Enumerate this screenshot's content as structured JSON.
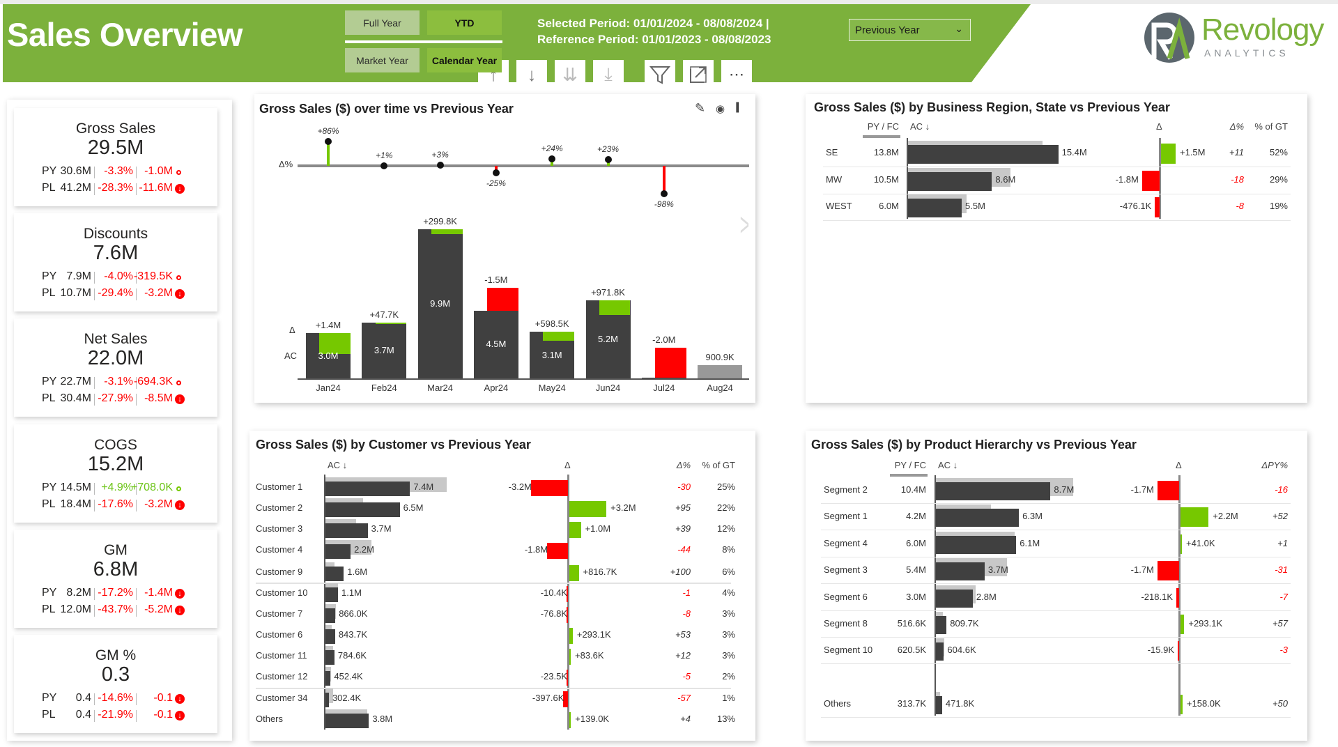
{
  "header": {
    "title": "Sales Overview",
    "period_buttons": [
      {
        "label": "Full Year",
        "selected": false
      },
      {
        "label": "YTD",
        "selected": true
      }
    ],
    "year_buttons": [
      {
        "label": "Market Year",
        "selected": false
      },
      {
        "label": "Calendar Year",
        "selected": true
      }
    ],
    "selected_period": "Selected Period: 01/01/2024 - 08/08/2024 |",
    "reference_period": "Reference Period: 01/01/2023 - 08/08/2023",
    "comparison_dropdown": {
      "value": "Previous Year"
    },
    "logo": {
      "name": "Revology",
      "tagline": "ANALYTICS"
    }
  },
  "toolbar": [
    "drill-up-icon",
    "drill-down-icon",
    "expand-all-down-icon",
    "expand-next-level-icon",
    "filter-icon",
    "focus-mode-icon",
    "more-options-icon"
  ],
  "colors": {
    "brand_green": "#7cb13c",
    "positive": "#76c800",
    "negative": "#ff0000",
    "actual": "#404040",
    "previous": "#c8c8c8"
  },
  "kpis": [
    {
      "title": "Gross Sales",
      "value": "29.5M",
      "rows": [
        {
          "label": "PY",
          "value": "30.6M",
          "pct": "-3.3%",
          "delta": "-1.0M",
          "trend": "neg",
          "icon": "dot"
        },
        {
          "label": "PL",
          "value": "41.2M",
          "pct": "-28.3%",
          "delta": "-11.6M",
          "trend": "neg",
          "icon": "arrow-down-circle"
        }
      ]
    },
    {
      "title": "Discounts",
      "value": "7.6M",
      "rows": [
        {
          "label": "PY",
          "value": "7.9M",
          "pct": "-4.0%",
          "delta": "-319.5K",
          "trend": "neg",
          "icon": "dot"
        },
        {
          "label": "PL",
          "value": "10.7M",
          "pct": "-29.4%",
          "delta": "-3.2M",
          "trend": "neg",
          "icon": "arrow-down-circle"
        }
      ]
    },
    {
      "title": "Net Sales",
      "value": "22.0M",
      "rows": [
        {
          "label": "PY",
          "value": "22.7M",
          "pct": "-3.1%",
          "delta": "-694.3K",
          "trend": "neg",
          "icon": "dot"
        },
        {
          "label": "PL",
          "value": "30.4M",
          "pct": "-27.9%",
          "delta": "-8.5M",
          "trend": "neg",
          "icon": "arrow-down-circle"
        }
      ]
    },
    {
      "title": "COGS",
      "value": "15.2M",
      "rows": [
        {
          "label": "PY",
          "value": "14.5M",
          "pct": "+4.9%",
          "delta": "+708.0K",
          "trend": "pos",
          "icon": "dot"
        },
        {
          "label": "PL",
          "value": "18.4M",
          "pct": "-17.6%",
          "delta": "-3.2M",
          "trend": "neg",
          "icon": "arrow-down-circle"
        }
      ]
    },
    {
      "title": "GM",
      "value": "6.8M",
      "rows": [
        {
          "label": "PY",
          "value": "8.2M",
          "pct": "-17.2%",
          "delta": "-1.4M",
          "trend": "neg",
          "icon": "arrow-down-circle"
        },
        {
          "label": "PL",
          "value": "12.0M",
          "pct": "-43.7%",
          "delta": "-5.2M",
          "trend": "neg",
          "icon": "arrow-down-circle"
        }
      ]
    },
    {
      "title": "GM %",
      "value": "0.3",
      "rows": [
        {
          "label": "PY",
          "value": "0.4",
          "pct": "-14.6%",
          "delta": "-0.1",
          "trend": "neg",
          "icon": "arrow-down-circle"
        },
        {
          "label": "PL",
          "value": "0.4",
          "pct": "-21.9%",
          "delta": "-0.1",
          "trend": "neg",
          "icon": "arrow-down-circle"
        }
      ]
    }
  ],
  "chart_data": [
    {
      "type": "bar",
      "title": "Gross Sales ($) over time vs Previous Year",
      "row_labels": {
        "delta_pct": "Δ%",
        "delta": "Δ",
        "actual": "AC"
      },
      "categories": [
        "Jan24",
        "Feb24",
        "Mar24",
        "Apr24",
        "May24",
        "Jun24",
        "Jul24",
        "Aug24"
      ],
      "ac": [
        3.0,
        3.7,
        9.9,
        4.5,
        3.1,
        5.2,
        0.04,
        0.9009
      ],
      "ac_labels": [
        "3.0M",
        "3.7M",
        "9.9M",
        "4.5M",
        "3.1M",
        "5.2M",
        "",
        "900.9K"
      ],
      "delta": [
        1.4,
        0.0477,
        0.2998,
        -1.5,
        0.5985,
        0.9718,
        -2.0,
        null
      ],
      "delta_labels": [
        "+1.4M",
        "+47.7K",
        "+299.8K",
        "-1.5M",
        "+598.5K",
        "+971.8K",
        "-2.0M",
        ""
      ],
      "delta_pct": [
        86,
        1,
        3,
        -25,
        24,
        23,
        -98,
        null
      ],
      "delta_pct_labels": [
        "+86%",
        "+1%",
        "+3%",
        "-25%",
        "+24%",
        "+23%",
        "-98%",
        ""
      ],
      "unit": "M"
    },
    {
      "type": "table",
      "title": "Gross Sales ($) by Business Region, State vs Previous Year",
      "columns": {
        "py": "PY / FC",
        "ac": "AC ↓",
        "delta": "Δ",
        "delta_pct": "Δ%",
        "pct_gt": "% of GT"
      },
      "rows": [
        {
          "label": "SE",
          "py": "13.8M",
          "ac": "15.4M",
          "delta": "+1.5M",
          "delta_pct": "+11",
          "pct_gt": "52%"
        },
        {
          "label": "MW",
          "py": "10.5M",
          "ac": "8.6M",
          "delta": "-1.8M",
          "delta_pct": "-18",
          "pct_gt": "29%"
        },
        {
          "label": "WEST",
          "py": "6.0M",
          "ac": "5.5M",
          "delta": "-476.1K",
          "delta_pct": "-8",
          "pct_gt": "19%"
        }
      ]
    },
    {
      "type": "table",
      "title": "Gross Sales ($) by Customer vs Previous Year",
      "columns": {
        "ac": "AC ↓",
        "delta": "Δ",
        "delta_pct": "Δ%",
        "pct_gt": "% of GT"
      },
      "rows": [
        {
          "label": "Customer 1",
          "ac": "7.4M",
          "delta": "-3.2M",
          "delta_pct": "-30",
          "pct_gt": "25%"
        },
        {
          "label": "Customer 2",
          "ac": "6.5M",
          "delta": "+3.2M",
          "delta_pct": "+95",
          "pct_gt": "22%"
        },
        {
          "label": "Customer 3",
          "ac": "3.7M",
          "delta": "+1.0M",
          "delta_pct": "+39",
          "pct_gt": "12%"
        },
        {
          "label": "Customer 4",
          "ac": "2.2M",
          "delta": "-1.8M",
          "delta_pct": "-44",
          "pct_gt": "8%"
        },
        {
          "label": "Customer 9",
          "ac": "1.6M",
          "delta": "+816.7K",
          "delta_pct": "+100",
          "pct_gt": "6%"
        },
        {
          "label": "Customer 10",
          "ac": "1.1M",
          "delta": "-10.4K",
          "delta_pct": "-1",
          "pct_gt": "4%"
        },
        {
          "label": "Customer 7",
          "ac": "866.0K",
          "delta": "-76.8K",
          "delta_pct": "-8",
          "pct_gt": "3%"
        },
        {
          "label": "Customer 6",
          "ac": "843.7K",
          "delta": "+293.1K",
          "delta_pct": "+53",
          "pct_gt": "3%"
        },
        {
          "label": "Customer 11",
          "ac": "784.6K",
          "delta": "+83.6K",
          "delta_pct": "+12",
          "pct_gt": "3%"
        },
        {
          "label": "Customer 12",
          "ac": "452.4K",
          "delta": "-23.5K",
          "delta_pct": "-5",
          "pct_gt": "2%"
        },
        {
          "label": "Customer 34",
          "ac": "302.4K",
          "delta": "-397.6K",
          "delta_pct": "-57",
          "pct_gt": "1%"
        },
        {
          "label": "Others",
          "ac": "3.8M",
          "delta": "+139.0K",
          "delta_pct": "+4",
          "pct_gt": "13%"
        }
      ]
    },
    {
      "type": "table",
      "title": "Gross Sales ($) by Product Hierarchy vs Previous Year",
      "columns": {
        "py": "PY / FC",
        "ac": "AC ↓",
        "delta": "Δ",
        "delta_pct": "ΔPY%"
      },
      "rows": [
        {
          "label": "Segment 2",
          "py": "10.4M",
          "ac": "8.7M",
          "delta": "-1.7M",
          "delta_pct": "-16"
        },
        {
          "label": "Segment 1",
          "py": "4.2M",
          "ac": "6.3M",
          "delta": "+2.2M",
          "delta_pct": "+52"
        },
        {
          "label": "Segment 4",
          "py": "6.0M",
          "ac": "6.1M",
          "delta": "+41.0K",
          "delta_pct": "+1"
        },
        {
          "label": "Segment 3",
          "py": "5.4M",
          "ac": "3.7M",
          "delta": "-1.7M",
          "delta_pct": "-31"
        },
        {
          "label": "Segment 6",
          "py": "3.0M",
          "ac": "2.8M",
          "delta": "-218.1K",
          "delta_pct": "-7"
        },
        {
          "label": "Segment 8",
          "py": "516.6K",
          "ac": "809.7K",
          "delta": "+293.1K",
          "delta_pct": "+57"
        },
        {
          "label": "Segment 10",
          "py": "620.5K",
          "ac": "604.6K",
          "delta": "-15.9K",
          "delta_pct": "-3"
        },
        {
          "label": "Others",
          "py": "313.7K",
          "ac": "471.8K",
          "delta": "+158.0K",
          "delta_pct": "+50"
        }
      ]
    }
  ]
}
